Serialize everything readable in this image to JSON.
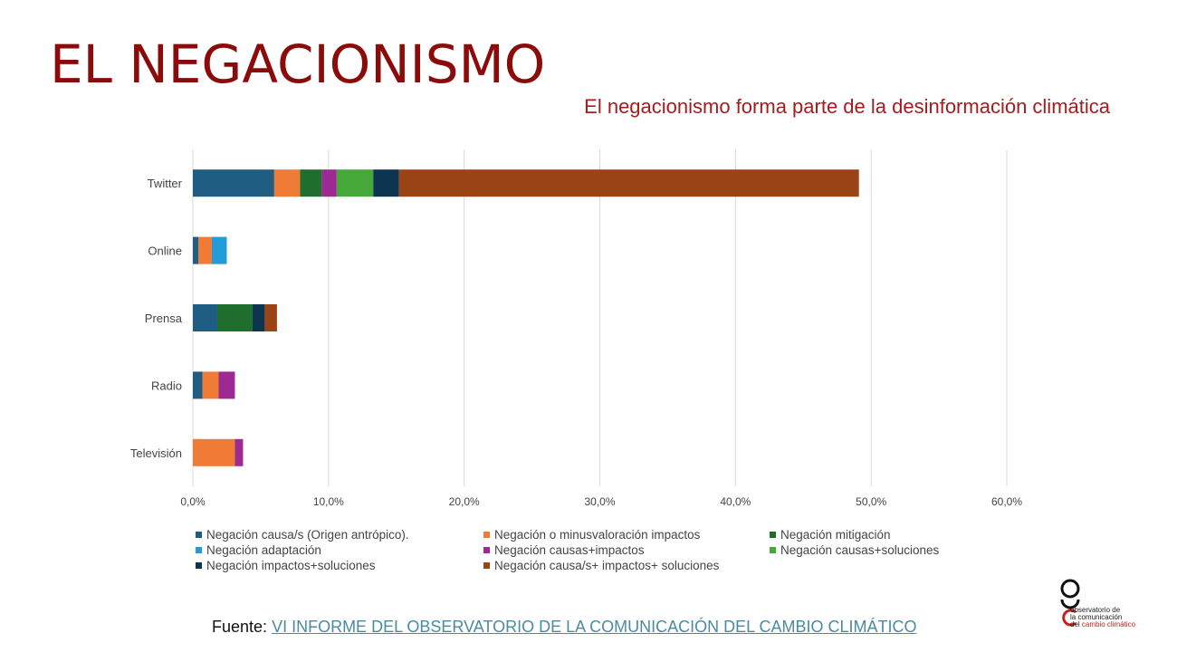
{
  "header": {
    "title": "EL NEGACIONISMO",
    "subtitle": "El negacionismo forma parte de la desinformación climática"
  },
  "chart_data": {
    "type": "bar",
    "orientation": "horizontal",
    "stacked": true,
    "categories": [
      "Twitter",
      "Online",
      "Prensa",
      "Radio",
      "Televisión"
    ],
    "series": [
      {
        "name": "Negación causa/s (Origen antrópico).",
        "color": "#1f5e82",
        "values": [
          6.0,
          0.4,
          1.8,
          0.7,
          0.0
        ]
      },
      {
        "name": "Negación o minusvaloración impactos",
        "color": "#ef7b36",
        "values": [
          1.9,
          1.0,
          0.0,
          1.2,
          3.1
        ]
      },
      {
        "name": "Negación mitigación",
        "color": "#1f6e2e",
        "values": [
          1.6,
          0.0,
          2.6,
          0.0,
          0.0
        ]
      },
      {
        "name": "Negación adaptación",
        "color": "#229bd6",
        "values": [
          0.0,
          1.1,
          0.0,
          0.0,
          0.0
        ]
      },
      {
        "name": "Negación causas+impactos",
        "color": "#9c2a92",
        "values": [
          1.1,
          0.0,
          0.0,
          1.2,
          0.6
        ]
      },
      {
        "name": "Negación causas+soluciones",
        "color": "#47a83a",
        "values": [
          2.7,
          0.0,
          0.0,
          0.0,
          0.0
        ]
      },
      {
        "name": "Negación impactos+soluciones",
        "color": "#0d3450",
        "values": [
          1.9,
          0.0,
          0.9,
          0.0,
          0.0
        ]
      },
      {
        "name": "Negación causa/s+ impactos+ soluciones",
        "color": "#9a4314",
        "values": [
          33.9,
          0.0,
          0.9,
          0.0,
          0.0
        ]
      }
    ],
    "xlim": [
      0,
      60
    ],
    "xticks": [
      "0,0%",
      "10,0%",
      "20,0%",
      "30,0%",
      "40,0%",
      "50,0%",
      "60,0%"
    ],
    "grid": "vertical",
    "legend_position": "bottom"
  },
  "footer": {
    "source_label": "Fuente:",
    "source_link": "VI INFORME DEL OBSERVATORIO DE LA COMUNICACIÓN DEL CAMBIO CLIMÁTICO"
  },
  "logo": {
    "line1": "observatorio de",
    "line2": "la comunicación",
    "line3a": "del ",
    "line3b": "cambio climático"
  }
}
